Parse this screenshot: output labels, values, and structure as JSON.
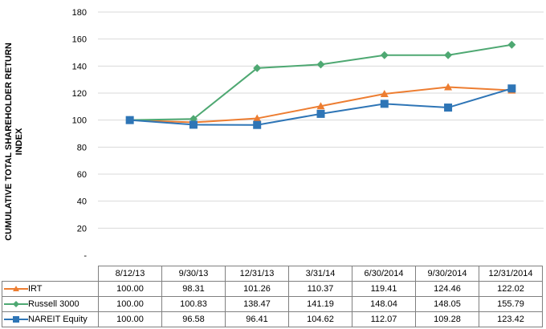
{
  "chart_data": {
    "type": "line",
    "ylabel": "CUMULATIVE TOTAL SHAREHOLDER RETURN INDEX",
    "ylabel_lines": [
      "CUMULATIVE TOTAL SHAREHOLDER RETURN",
      "INDEX"
    ],
    "ylim": [
      0,
      180
    ],
    "yticks": [
      {
        "value": 0,
        "label": "-"
      },
      {
        "value": 20,
        "label": "20"
      },
      {
        "value": 40,
        "label": "40"
      },
      {
        "value": 60,
        "label": "60"
      },
      {
        "value": 80,
        "label": "80"
      },
      {
        "value": 100,
        "label": "100"
      },
      {
        "value": 120,
        "label": "120"
      },
      {
        "value": 140,
        "label": "140"
      },
      {
        "value": 160,
        "label": "160"
      },
      {
        "value": 180,
        "label": "180"
      }
    ],
    "grid": true,
    "legend": "data-table",
    "categories": [
      "8/12/13",
      "9/30/13",
      "12/31/13",
      "3/31/14",
      "6/30/2014",
      "9/30/2014",
      "12/31/2014"
    ],
    "series": [
      {
        "name": "IRT",
        "color": "#ED7D31",
        "marker": "triangle",
        "values": [
          100.0,
          98.31,
          101.26,
          110.37,
          119.41,
          124.46,
          122.02
        ],
        "labels": [
          "100.00",
          "98.31",
          "101.26",
          "110.37",
          "119.41",
          "124.46",
          "122.02"
        ]
      },
      {
        "name": "Russell 3000",
        "color": "#4EA872",
        "marker": "diamond",
        "values": [
          100.0,
          100.83,
          138.47,
          141.19,
          148.04,
          148.05,
          155.79
        ],
        "labels": [
          "100.00",
          "100.83",
          "138.47",
          "141.19",
          "148.04",
          "148.05",
          "155.79"
        ]
      },
      {
        "name": "NAREIT Equity",
        "color": "#2E75B6",
        "marker": "square",
        "values": [
          100.0,
          96.58,
          96.41,
          104.62,
          112.07,
          109.28,
          123.42
        ],
        "labels": [
          "100.00",
          "96.58",
          "96.41",
          "104.62",
          "112.07",
          "109.28",
          "123.42"
        ]
      }
    ]
  }
}
